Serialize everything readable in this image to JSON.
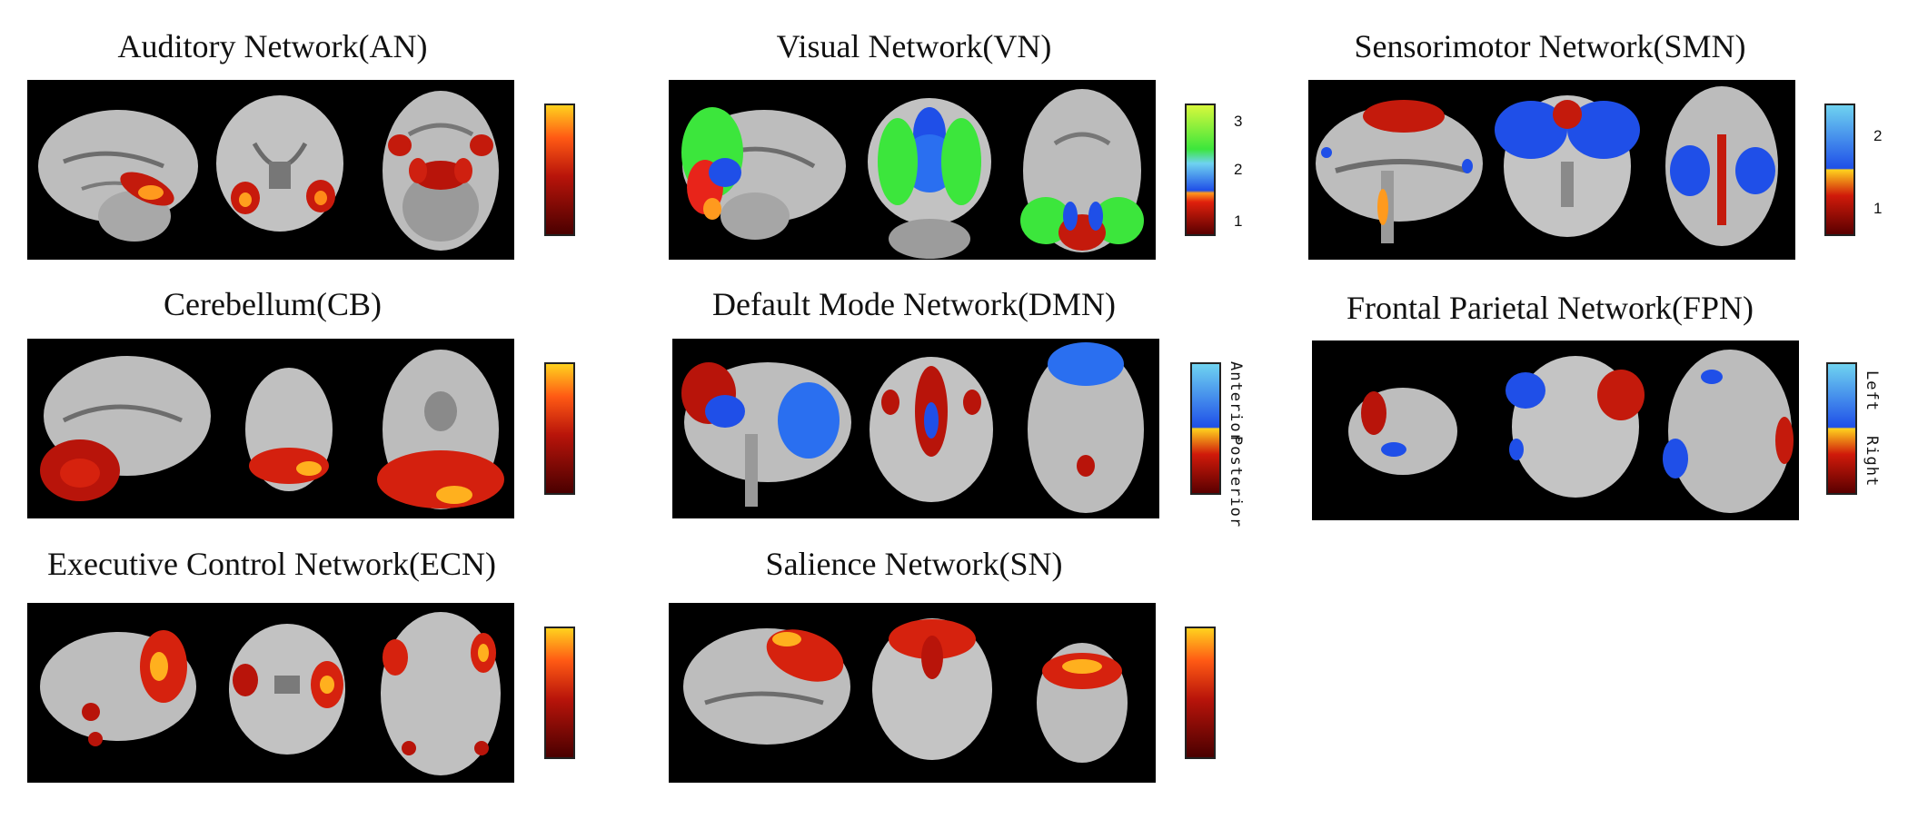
{
  "panels": [
    {
      "title": "Auditory Network(AN)",
      "colorbar": "hot"
    },
    {
      "title": "Visual Network(VN)",
      "colorbar": "vn",
      "ticks": [
        "3",
        "2",
        "1"
      ]
    },
    {
      "title": "Sensorimotor Network(SMN)",
      "colorbar": "twotone",
      "ticks": [
        "2",
        "1"
      ]
    },
    {
      "title": "Cerebellum(CB)",
      "colorbar": "hot"
    },
    {
      "title": "Default Mode Network(DMN)",
      "colorbar": "twotone",
      "side_labels": [
        "Anterior",
        "Posterior"
      ]
    },
    {
      "title": "Frontal Parietal Network(FPN)",
      "colorbar": "twotone",
      "side_labels": [
        "Left",
        "Right"
      ]
    },
    {
      "title": "Executive Control Network(ECN)",
      "colorbar": "hot"
    },
    {
      "title": "Salience Network(SN)",
      "colorbar": "hot"
    }
  ],
  "colors": {
    "background": "#000000",
    "hot_low": "#5a0000",
    "hot_mid": "#d91a0a",
    "hot_high": "#ffd21e",
    "blue": "#1f4fe8",
    "light_blue": "#6fd3f0",
    "green": "#3ce63c"
  }
}
